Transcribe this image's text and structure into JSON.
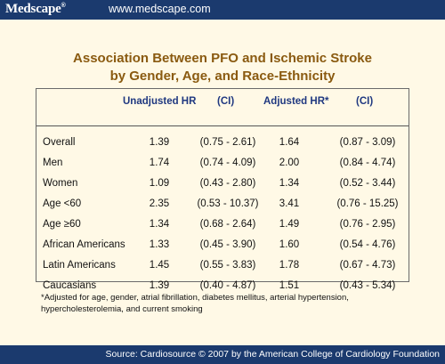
{
  "header": {
    "logo": "Medscape",
    "logo_mark": "®",
    "url": "www.medscape.com"
  },
  "title": {
    "line1": "Association Between PFO and Ischemic Stroke",
    "line2": "by Gender, Age, and Race-Ethnicity"
  },
  "table": {
    "columns": [
      "Unadjusted HR",
      "(CI)",
      "Adjusted HR*",
      "(CI)"
    ],
    "rows": [
      {
        "label": "Overall",
        "unadj_hr": "1.39",
        "unadj_ci": "(0.75 - 2.61)",
        "adj_hr": "1.64",
        "adj_ci": "(0.87 - 3.09)"
      },
      {
        "label": "Men",
        "unadj_hr": "1.74",
        "unadj_ci": "(0.74 - 4.09)",
        "adj_hr": "2.00",
        "adj_ci": "(0.84 - 4.74)"
      },
      {
        "label": "Women",
        "unadj_hr": "1.09",
        "unadj_ci": "(0.43 - 2.80)",
        "adj_hr": "1.34",
        "adj_ci": "(0.52 - 3.44)"
      },
      {
        "label": "Age <60",
        "unadj_hr": "2.35",
        "unadj_ci": "(0.53 - 10.37)",
        "adj_hr": "3.41",
        "adj_ci": "(0.76 - 15.25)"
      },
      {
        "label": "Age ≥60",
        "unadj_hr": "1.34",
        "unadj_ci": "(0.68 - 2.64)",
        "adj_hr": "1.49",
        "adj_ci": "(0.76 - 2.95)"
      },
      {
        "label": "African Americans",
        "unadj_hr": "1.33",
        "unadj_ci": "(0.45 - 3.90)",
        "adj_hr": "1.60",
        "adj_ci": "(0.54 - 4.76)"
      },
      {
        "label": "Latin Americans",
        "unadj_hr": "1.45",
        "unadj_ci": "(0.55 - 3.83)",
        "adj_hr": "1.78",
        "adj_ci": "(0.67 - 4.73)"
      },
      {
        "label": "Caucasians",
        "unadj_hr": "1.39",
        "unadj_ci": "(0.40 - 4.87)",
        "adj_hr": "1.51",
        "adj_ci": "(0.43 - 5.34)"
      }
    ]
  },
  "footnote": {
    "line1": "*Adjusted for age, gender, atrial fibrillation, diabetes mellitus, arterial hypertension,",
    "line2": "hypercholesterolemia, and current smoking"
  },
  "source": "Source: Cardiosource © 2007 by the American College of Cardiology Foundation",
  "colors": {
    "bar": "#1b3a6e",
    "title": "#8a5a10",
    "header_text": "#1f3880",
    "background": "#fff9e6"
  }
}
